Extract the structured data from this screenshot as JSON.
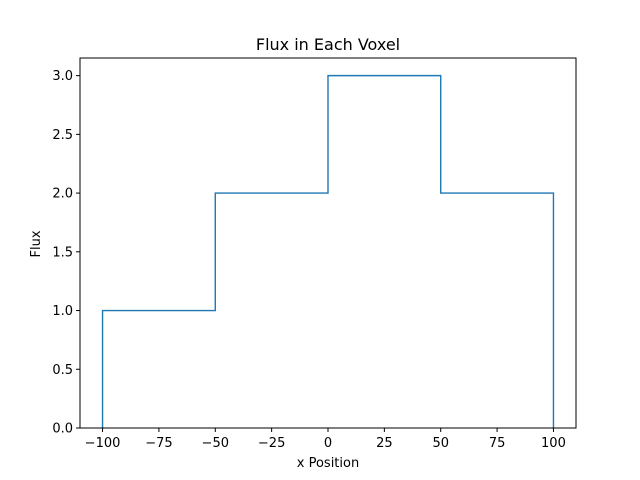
{
  "chart_data": {
    "type": "line",
    "style": "step-histogram",
    "title": "Flux in Each Voxel",
    "xlabel": "x Position",
    "ylabel": "Flux",
    "xlim": [
      -110,
      110
    ],
    "ylim": [
      0,
      3.15
    ],
    "bin_edges": [
      -100,
      -50,
      0,
      50,
      100
    ],
    "values": [
      1,
      2,
      3,
      2
    ],
    "xticks": [
      -100,
      -75,
      -50,
      -25,
      0,
      25,
      50,
      75,
      100
    ],
    "xtick_labels": [
      "−100",
      "−75",
      "−50",
      "−25",
      "0",
      "25",
      "50",
      "75",
      "100"
    ],
    "yticks": [
      0.0,
      0.5,
      1.0,
      1.5,
      2.0,
      2.5,
      3.0
    ],
    "ytick_labels": [
      "0.0",
      "0.5",
      "1.0",
      "1.5",
      "2.0",
      "2.5",
      "3.0"
    ],
    "line_color": "#1f77b4",
    "grid": false
  }
}
